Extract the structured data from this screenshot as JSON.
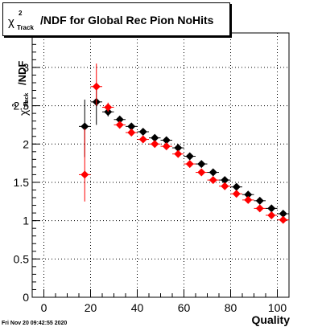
{
  "title": {
    "symbol": "χ",
    "superscript": "2",
    "subscript": "Track",
    "text": "/NDF for Global Rec Pion NoHits"
  },
  "footer": "Fri Nov 20 09:42:55 2020",
  "chart_data": {
    "type": "scatter",
    "title": "χ²_Track/NDF for Global Rec Pion NoHits",
    "xlabel": "Quality",
    "ylabel": {
      "symbol": "χ",
      "superscript": "2",
      "subscript": "Track",
      "text": "/NDF"
    },
    "xlim": [
      -5,
      105
    ],
    "ylim": [
      0,
      3.45
    ],
    "xticks": [
      "0",
      "20",
      "40",
      "60",
      "80",
      "100"
    ],
    "yticks": [
      "0",
      "0.5",
      "1",
      "1.5",
      "2",
      "2.5",
      "3"
    ],
    "grid": true,
    "series": [
      {
        "color": "#000000",
        "points": [
          {
            "x": 17.5,
            "y": 2.23,
            "yerr_low": 0.4,
            "yerr_high": 0.35
          },
          {
            "x": 22.5,
            "y": 2.55,
            "yerr_low": 0.3,
            "yerr_high": 0.25
          },
          {
            "x": 27.5,
            "y": 2.42,
            "yerr_low": 0.06,
            "yerr_high": 0.06
          },
          {
            "x": 32.5,
            "y": 2.32,
            "yerr_low": 0.03,
            "yerr_high": 0.03
          },
          {
            "x": 37.5,
            "y": 2.23,
            "yerr_low": 0.02,
            "yerr_high": 0.02
          },
          {
            "x": 42.5,
            "y": 2.16,
            "yerr_low": 0.02,
            "yerr_high": 0.02
          },
          {
            "x": 47.5,
            "y": 2.08,
            "yerr_low": 0.02,
            "yerr_high": 0.02
          },
          {
            "x": 52.5,
            "y": 2.05,
            "yerr_low": 0.02,
            "yerr_high": 0.02
          },
          {
            "x": 57.5,
            "y": 1.95,
            "yerr_low": 0.02,
            "yerr_high": 0.02
          },
          {
            "x": 62.5,
            "y": 1.84,
            "yerr_low": 0.02,
            "yerr_high": 0.02
          },
          {
            "x": 67.5,
            "y": 1.74,
            "yerr_low": 0.02,
            "yerr_high": 0.02
          },
          {
            "x": 72.5,
            "y": 1.63,
            "yerr_low": 0.02,
            "yerr_high": 0.02
          },
          {
            "x": 77.5,
            "y": 1.53,
            "yerr_low": 0.02,
            "yerr_high": 0.02
          },
          {
            "x": 82.5,
            "y": 1.44,
            "yerr_low": 0.02,
            "yerr_high": 0.02
          },
          {
            "x": 87.5,
            "y": 1.34,
            "yerr_low": 0.02,
            "yerr_high": 0.02
          },
          {
            "x": 92.5,
            "y": 1.26,
            "yerr_low": 0.02,
            "yerr_high": 0.02
          },
          {
            "x": 97.5,
            "y": 1.16,
            "yerr_low": 0.02,
            "yerr_high": 0.02
          },
          {
            "x": 102.5,
            "y": 1.09,
            "yerr_low": 0.02,
            "yerr_high": 0.02
          }
        ]
      },
      {
        "color": "#ff0000",
        "points": [
          {
            "x": 17.5,
            "y": 1.6,
            "yerr_low": 0.35,
            "yerr_high": 0.6
          },
          {
            "x": 22.5,
            "y": 2.75,
            "yerr_low": 0.25,
            "yerr_high": 0.3
          },
          {
            "x": 27.5,
            "y": 2.48,
            "yerr_low": 0.06,
            "yerr_high": 0.06
          },
          {
            "x": 32.5,
            "y": 2.25,
            "yerr_low": 0.03,
            "yerr_high": 0.03
          },
          {
            "x": 37.5,
            "y": 2.15,
            "yerr_low": 0.02,
            "yerr_high": 0.02
          },
          {
            "x": 42.5,
            "y": 2.06,
            "yerr_low": 0.02,
            "yerr_high": 0.02
          },
          {
            "x": 47.5,
            "y": 2.0,
            "yerr_low": 0.02,
            "yerr_high": 0.02
          },
          {
            "x": 52.5,
            "y": 1.97,
            "yerr_low": 0.02,
            "yerr_high": 0.02
          },
          {
            "x": 57.5,
            "y": 1.87,
            "yerr_low": 0.02,
            "yerr_high": 0.02
          },
          {
            "x": 62.5,
            "y": 1.74,
            "yerr_low": 0.02,
            "yerr_high": 0.02
          },
          {
            "x": 67.5,
            "y": 1.63,
            "yerr_low": 0.02,
            "yerr_high": 0.02
          },
          {
            "x": 72.5,
            "y": 1.53,
            "yerr_low": 0.02,
            "yerr_high": 0.02
          },
          {
            "x": 77.5,
            "y": 1.45,
            "yerr_low": 0.02,
            "yerr_high": 0.02
          },
          {
            "x": 82.5,
            "y": 1.35,
            "yerr_low": 0.02,
            "yerr_high": 0.02
          },
          {
            "x": 87.5,
            "y": 1.27,
            "yerr_low": 0.02,
            "yerr_high": 0.02
          },
          {
            "x": 92.5,
            "y": 1.16,
            "yerr_low": 0.02,
            "yerr_high": 0.02
          },
          {
            "x": 97.5,
            "y": 1.07,
            "yerr_low": 0.02,
            "yerr_high": 0.02
          },
          {
            "x": 102.5,
            "y": 1.01,
            "yerr_low": 0.02,
            "yerr_high": 0.02
          }
        ]
      }
    ]
  }
}
